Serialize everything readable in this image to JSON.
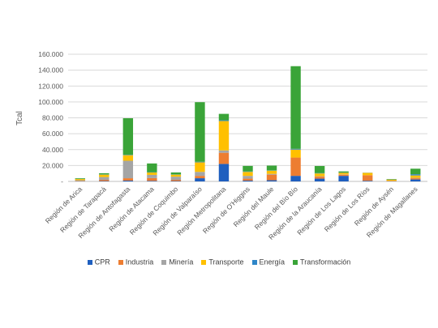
{
  "chart_data": {
    "type": "bar",
    "stacked": true,
    "ylabel": "Tcal",
    "xlabel": "",
    "ylim": [
      0,
      160000
    ],
    "yticks": [
      "-",
      "20.000",
      "40.000",
      "60.000",
      "80.000",
      "100.000",
      "120.000",
      "140.000",
      "160.000"
    ],
    "ytick_values": [
      0,
      20000,
      40000,
      60000,
      80000,
      100000,
      120000,
      140000,
      160000
    ],
    "grid": true,
    "legend_position": "bottom",
    "categories": [
      "Región de Arica",
      "Región de Tarapacá",
      "Región de Antofagasta",
      "Región de Atacama",
      "Región de Coquimbo",
      "Región de Valparaíso",
      "Región Metropolitana",
      "Región de O'Higgins",
      "Región del Maule",
      "Región del Bío Bío",
      "Región de la Araucanía",
      "Región de Los Lagos",
      "Región de Los Ríos",
      "Región de Aysén",
      "Región de Magallanes"
    ],
    "series": [
      {
        "name": "CPR",
        "color": "#1f5fbf",
        "values": [
          300,
          500,
          1000,
          700,
          500,
          4000,
          22000,
          1000,
          1500,
          7000,
          3500,
          7000,
          800,
          300,
          2500
        ]
      },
      {
        "name": "Industria",
        "color": "#ed7d31",
        "values": [
          500,
          1500,
          3000,
          3500,
          1500,
          3000,
          14000,
          2500,
          7000,
          23000,
          2500,
          1500,
          7000,
          500,
          1500
        ]
      },
      {
        "name": "Minería",
        "color": "#a5a5a5",
        "values": [
          700,
          3500,
          22000,
          4000,
          4000,
          5000,
          3000,
          3500,
          1000,
          0,
          500,
          300,
          0,
          0,
          500
        ]
      },
      {
        "name": "Transporte",
        "color": "#ffc000",
        "values": [
          1500,
          3000,
          7000,
          3000,
          2500,
          12000,
          37000,
          5000,
          4000,
          10000,
          3500,
          2000,
          3000,
          1500,
          3000
        ]
      },
      {
        "name": "Energía",
        "color": "#2e86c8",
        "values": [
          200,
          300,
          500,
          400,
          300,
          700,
          1000,
          500,
          400,
          1000,
          400,
          300,
          200,
          200,
          1500
        ]
      },
      {
        "name": "Transformación",
        "color": "#3aa438",
        "values": [
          800,
          1500,
          46000,
          11000,
          2500,
          75000,
          8000,
          7000,
          6000,
          104000,
          9000,
          1500,
          0,
          500,
          7000
        ]
      }
    ]
  }
}
